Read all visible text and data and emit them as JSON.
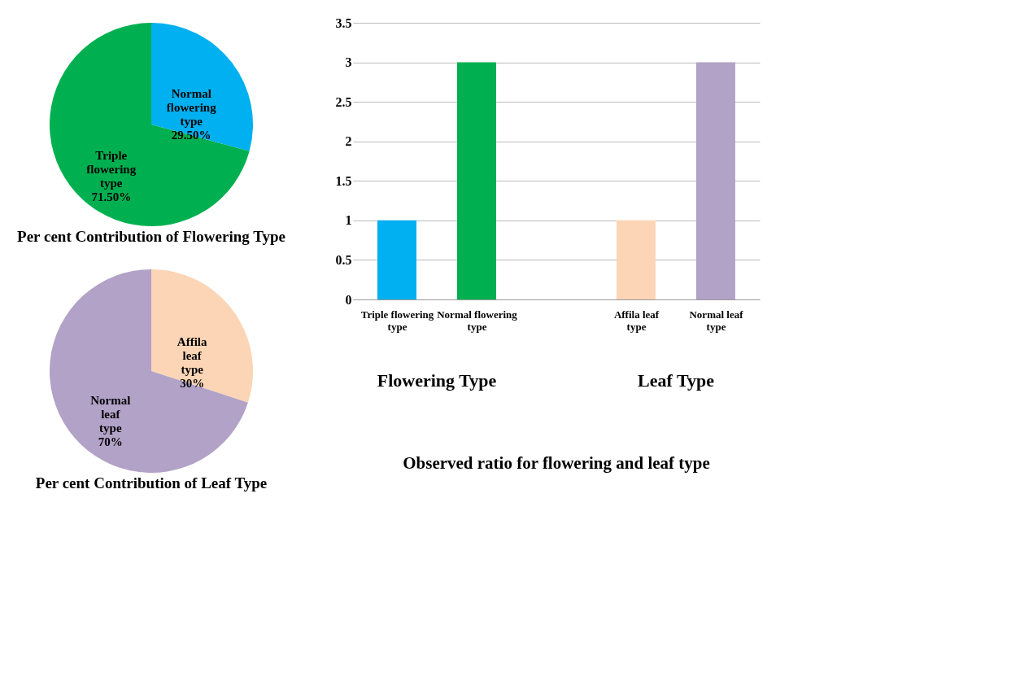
{
  "chart_data": [
    {
      "type": "pie",
      "title": "Per cent Contribution of Flowering Type",
      "categories": [
        "Normal flowering type",
        "Triple flowering type"
      ],
      "values": [
        29.5,
        71.5
      ],
      "colors": [
        "#00b0f0",
        "#00b050"
      ],
      "value_labels": [
        "29.50%",
        "71.50%"
      ]
    },
    {
      "type": "pie",
      "title": "Per cent Contribution of Leaf Type",
      "categories": [
        "Affila leaf type",
        "Normal leaf type"
      ],
      "values": [
        30,
        70
      ],
      "colors": [
        "#fbd5b5",
        "#b2a2c7"
      ],
      "value_labels": [
        "30%",
        "70%"
      ]
    },
    {
      "type": "bar",
      "title": "Observed ratio for flowering and leaf type",
      "categories": [
        "Triple flowering type",
        "Normal flowering type",
        null,
        "Affila leaf type",
        "Normal leaf type"
      ],
      "values": [
        1,
        3,
        null,
        1,
        3
      ],
      "colors": [
        "#00b0f0",
        "#00b050",
        "#ffffff",
        "#fbd5b5",
        "#b2a2c7"
      ],
      "ylim": [
        0,
        3.5
      ],
      "yticks": [
        0,
        0.5,
        1,
        1.5,
        2,
        2.5,
        3,
        3.5
      ],
      "grid": "y",
      "annotations": [
        "Flowering Type",
        "Leaf Type"
      ]
    }
  ]
}
